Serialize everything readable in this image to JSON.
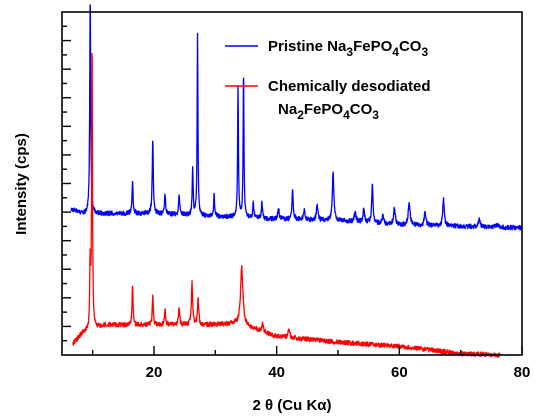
{
  "chart_data": {
    "type": "line",
    "title": "",
    "xlabel": "2 θ (Cu Kα)",
    "ylabel": "Intensity (cps)",
    "xlim": [
      5,
      80
    ],
    "ylim": [
      0,
      12
    ],
    "x_ticks": [
      20,
      40,
      60,
      80
    ],
    "y_ticks": [
      1,
      2,
      3,
      4,
      5,
      6
    ],
    "grid": false,
    "y_tick_labels_shown": false,
    "legend_position": "top-right",
    "series": [
      {
        "name_main": "Pristine Na3FePO4CO3",
        "color": "#0000ff",
        "baseline": [
          [
            6.5,
            5.1
          ],
          [
            8.5,
            4.95
          ],
          [
            12,
            4.95
          ],
          [
            20,
            4.95
          ],
          [
            30,
            4.85
          ],
          [
            40,
            4.75
          ],
          [
            50,
            4.7
          ],
          [
            60,
            4.55
          ],
          [
            70,
            4.5
          ],
          [
            80,
            4.45
          ]
        ],
        "peaks": [
          [
            9.6,
            7.6,
            0.18
          ],
          [
            16.5,
            1.1,
            0.2
          ],
          [
            19.8,
            2.6,
            0.2
          ],
          [
            21.8,
            0.7,
            0.2
          ],
          [
            24.1,
            0.7,
            0.2
          ],
          [
            26.3,
            1.65,
            0.18
          ],
          [
            27.1,
            6.4,
            0.15
          ],
          [
            29.8,
            0.75,
            0.2
          ],
          [
            33.7,
            4.6,
            0.16
          ],
          [
            34.6,
            5.1,
            0.16
          ],
          [
            36.2,
            0.55,
            0.2
          ],
          [
            37.6,
            0.55,
            0.2
          ],
          [
            40.3,
            0.35,
            0.3
          ],
          [
            42.6,
            1.0,
            0.25
          ],
          [
            44.5,
            0.35,
            0.3
          ],
          [
            46.6,
            0.55,
            0.3
          ],
          [
            49.2,
            1.65,
            0.3
          ],
          [
            52.8,
            0.35,
            0.3
          ],
          [
            54.2,
            0.5,
            0.3
          ],
          [
            55.6,
            1.3,
            0.25
          ],
          [
            57.3,
            0.3,
            0.3
          ],
          [
            59.2,
            0.6,
            0.3
          ],
          [
            61.6,
            0.8,
            0.35
          ],
          [
            64.2,
            0.5,
            0.3
          ],
          [
            67.2,
            0.95,
            0.3
          ],
          [
            73,
            0.25,
            0.35
          ],
          [
            76,
            0.12,
            0.35
          ]
        ]
      },
      {
        "name_main": "Chemically desodiated Na2FePO4CO3",
        "color": "#ff0000",
        "baseline": [
          [
            6.8,
            0.4
          ],
          [
            8.5,
            0.8
          ],
          [
            12,
            1.05
          ],
          [
            20,
            1.05
          ],
          [
            28,
            1.05
          ],
          [
            34,
            1.1
          ],
          [
            40,
            0.65
          ],
          [
            50,
            0.45
          ],
          [
            60,
            0.3
          ],
          [
            70,
            0.05
          ],
          [
            76.5,
            0
          ]
        ],
        "peaks": [
          [
            9.6,
            2.3,
            0.18
          ],
          [
            9.9,
            10.1,
            0.15
          ],
          [
            16.5,
            1.45,
            0.18
          ],
          [
            19.8,
            1.0,
            0.2
          ],
          [
            21.8,
            0.6,
            0.2
          ],
          [
            24.1,
            0.6,
            0.25
          ],
          [
            26.2,
            1.45,
            0.25
          ],
          [
            27.2,
            0.9,
            0.25
          ],
          [
            34.3,
            2.0,
            0.45
          ],
          [
            37.7,
            0.3,
            0.3
          ],
          [
            42,
            0.3,
            0.3
          ]
        ]
      }
    ]
  },
  "legend": {
    "items": [
      {
        "label_prefix": "Pristine Na",
        "sub1": "3",
        "mid1": "FePO",
        "sub2": "4",
        "mid2": "CO",
        "sub3": "3",
        "color": "#0000ff"
      },
      {
        "line1": "Chemically desodiated",
        "label_prefix": "Na",
        "sub1": "2",
        "mid1": "FePO",
        "sub2": "4",
        "mid2": "CO",
        "sub3": "3",
        "color": "#ff0000"
      }
    ]
  }
}
